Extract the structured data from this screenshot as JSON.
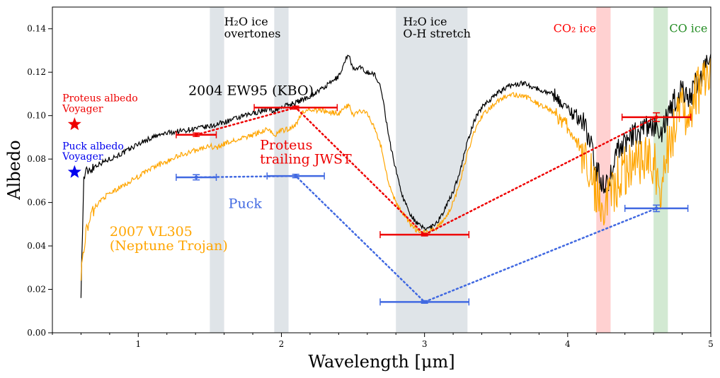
{
  "chart_data": {
    "type": "line",
    "title": "",
    "xlabel": "Wavelength [μm]",
    "ylabel": "Albedo",
    "xlim": [
      0.4,
      5.0
    ],
    "ylim": [
      0.0,
      0.15
    ],
    "x_ticks": [
      1,
      2,
      3,
      4,
      5
    ],
    "y_ticks": [
      0.0,
      0.02,
      0.04,
      0.06,
      0.08,
      0.1,
      0.12,
      0.14
    ],
    "x_tick_labels": [
      "1",
      "2",
      "3",
      "4",
      "5"
    ],
    "y_tick_labels": [
      "0.00",
      "0.02",
      "0.04",
      "0.06",
      "0.08",
      "0.10",
      "0.12",
      "0.14"
    ],
    "bands": [
      {
        "name": "h2o-overtone-band-1",
        "x0": 1.5,
        "x1": 1.6,
        "color": "#b9c3cb"
      },
      {
        "name": "h2o-overtone-band-2",
        "x0": 1.95,
        "x1": 2.05,
        "color": "#b9c3cb"
      },
      {
        "name": "h2o-stretch-band",
        "x0": 2.8,
        "x1": 3.3,
        "color": "#b9c3cb"
      },
      {
        "name": "co2-band",
        "x0": 4.2,
        "x1": 4.3,
        "color": "#ff9a9a"
      },
      {
        "name": "co-band",
        "x0": 4.6,
        "x1": 4.7,
        "color": "#9ccf9c"
      }
    ],
    "band_labels": [
      {
        "name": "h2o-overtones-label",
        "lines": [
          "H₂O ice",
          "overtones"
        ],
        "x": 1.6,
        "y": 0.1415,
        "color": "#000000"
      },
      {
        "name": "h2o-stretch-label",
        "lines": [
          "H₂O ice",
          "O-H stretch"
        ],
        "x": 2.85,
        "y": 0.1415,
        "color": "#000000"
      },
      {
        "name": "co2-ice-label",
        "lines": [
          "CO₂ ice"
        ],
        "x": 3.9,
        "y": 0.1385,
        "color": "#ff0000"
      },
      {
        "name": "co-ice-label",
        "lines": [
          "CO ice"
        ],
        "x": 4.71,
        "y": 0.1385,
        "color": "#228b22"
      }
    ],
    "series": [
      {
        "name": "2004 EW95 (KBO)",
        "color": "#000000",
        "label_lines": [
          "2004 EW95 (KBO)"
        ],
        "label_x": 1.35,
        "label_y": 0.1095,
        "points": [
          [
            0.6,
            0.019
          ],
          [
            0.62,
            0.072
          ],
          [
            0.65,
            0.075
          ],
          [
            0.7,
            0.077
          ],
          [
            0.8,
            0.08
          ],
          [
            0.9,
            0.083
          ],
          [
            1.0,
            0.087
          ],
          [
            1.1,
            0.09
          ],
          [
            1.2,
            0.092
          ],
          [
            1.3,
            0.093
          ],
          [
            1.4,
            0.094
          ],
          [
            1.5,
            0.095
          ],
          [
            1.55,
            0.096
          ],
          [
            1.6,
            0.097
          ],
          [
            1.7,
            0.099
          ],
          [
            1.8,
            0.101
          ],
          [
            1.9,
            0.103
          ],
          [
            1.95,
            0.102
          ],
          [
            2.0,
            0.104
          ],
          [
            2.05,
            0.105
          ],
          [
            2.1,
            0.106
          ],
          [
            2.2,
            0.109
          ],
          [
            2.3,
            0.113
          ],
          [
            2.4,
            0.118
          ],
          [
            2.47,
            0.129
          ],
          [
            2.5,
            0.121
          ],
          [
            2.55,
            0.122
          ],
          [
            2.6,
            0.12
          ],
          [
            2.65,
            0.119
          ],
          [
            2.7,
            0.112
          ],
          [
            2.75,
            0.09
          ],
          [
            2.8,
            0.075
          ],
          [
            2.85,
            0.062
          ],
          [
            2.9,
            0.055
          ],
          [
            2.95,
            0.05
          ],
          [
            3.0,
            0.048
          ],
          [
            3.05,
            0.049
          ],
          [
            3.1,
            0.052
          ],
          [
            3.15,
            0.058
          ],
          [
            3.2,
            0.065
          ],
          [
            3.25,
            0.075
          ],
          [
            3.3,
            0.088
          ],
          [
            3.35,
            0.098
          ],
          [
            3.4,
            0.104
          ],
          [
            3.5,
            0.11
          ],
          [
            3.6,
            0.114
          ],
          [
            3.7,
            0.115
          ],
          [
            3.8,
            0.112
          ],
          [
            3.9,
            0.11
          ],
          [
            4.0,
            0.103
          ],
          [
            4.1,
            0.098
          ],
          [
            4.15,
            0.09
          ],
          [
            4.2,
            0.075
          ],
          [
            4.25,
            0.067
          ],
          [
            4.3,
            0.072
          ],
          [
            4.35,
            0.085
          ],
          [
            4.4,
            0.088
          ],
          [
            4.5,
            0.092
          ],
          [
            4.6,
            0.096
          ],
          [
            4.65,
            0.09
          ],
          [
            4.7,
            0.1
          ],
          [
            4.75,
            0.107
          ],
          [
            4.8,
            0.112
          ],
          [
            4.85,
            0.108
          ],
          [
            4.9,
            0.115
          ],
          [
            4.95,
            0.12
          ],
          [
            5.0,
            0.125
          ]
        ]
      },
      {
        "name": "2007 VL305 (Neptune Trojan)",
        "color": "#ffa500",
        "label_lines": [
          "2007 VL305",
          "(Neptune Trojan)"
        ],
        "label_x": 0.8,
        "label_y": 0.0445,
        "points": [
          [
            0.6,
            0.027
          ],
          [
            0.63,
            0.045
          ],
          [
            0.66,
            0.052
          ],
          [
            0.7,
            0.058
          ],
          [
            0.75,
            0.062
          ],
          [
            0.8,
            0.064
          ],
          [
            0.9,
            0.068
          ],
          [
            1.0,
            0.072
          ],
          [
            1.1,
            0.076
          ],
          [
            1.2,
            0.079
          ],
          [
            1.3,
            0.082
          ],
          [
            1.4,
            0.084
          ],
          [
            1.5,
            0.086
          ],
          [
            1.55,
            0.085
          ],
          [
            1.6,
            0.087
          ],
          [
            1.7,
            0.089
          ],
          [
            1.8,
            0.091
          ],
          [
            1.9,
            0.094
          ],
          [
            1.95,
            0.091
          ],
          [
            2.0,
            0.093
          ],
          [
            2.05,
            0.094
          ],
          [
            2.1,
            0.096
          ],
          [
            2.15,
            0.102
          ],
          [
            2.2,
            0.103
          ],
          [
            2.3,
            0.102
          ],
          [
            2.4,
            0.101
          ],
          [
            2.47,
            0.105
          ],
          [
            2.5,
            0.1
          ],
          [
            2.55,
            0.102
          ],
          [
            2.6,
            0.101
          ],
          [
            2.65,
            0.095
          ],
          [
            2.7,
            0.085
          ],
          [
            2.75,
            0.068
          ],
          [
            2.8,
            0.06
          ],
          [
            2.85,
            0.055
          ],
          [
            2.9,
            0.05
          ],
          [
            2.95,
            0.047
          ],
          [
            3.0,
            0.046
          ],
          [
            3.05,
            0.047
          ],
          [
            3.1,
            0.049
          ],
          [
            3.15,
            0.053
          ],
          [
            3.2,
            0.06
          ],
          [
            3.25,
            0.07
          ],
          [
            3.3,
            0.083
          ],
          [
            3.35,
            0.093
          ],
          [
            3.4,
            0.1
          ],
          [
            3.5,
            0.106
          ],
          [
            3.6,
            0.11
          ],
          [
            3.7,
            0.109
          ],
          [
            3.8,
            0.105
          ],
          [
            3.9,
            0.102
          ],
          [
            4.0,
            0.095
          ],
          [
            4.1,
            0.085
          ],
          [
            4.15,
            0.075
          ],
          [
            4.2,
            0.065
          ],
          [
            4.25,
            0.058
          ],
          [
            4.3,
            0.062
          ],
          [
            4.35,
            0.07
          ],
          [
            4.4,
            0.075
          ],
          [
            4.5,
            0.08
          ],
          [
            4.6,
            0.08
          ],
          [
            4.65,
            0.068
          ],
          [
            4.7,
            0.085
          ],
          [
            4.75,
            0.095
          ],
          [
            4.8,
            0.102
          ],
          [
            4.85,
            0.1
          ],
          [
            4.9,
            0.11
          ],
          [
            4.95,
            0.115
          ],
          [
            5.0,
            0.118
          ]
        ]
      }
    ],
    "jwst_sets": [
      {
        "name": "Proteus trailing JWST",
        "color": "#ee0000",
        "label_lines": [
          "Proteus",
          "trailing JWST"
        ],
        "label_x": 1.85,
        "label_y": 0.0845,
        "points": [
          {
            "x": 1.405,
            "y": 0.0912,
            "xerr": 0.14,
            "yerr": 0.0008
          },
          {
            "x": 2.1,
            "y": 0.1037,
            "xerr": 0.29,
            "yerr": 0.0007
          },
          {
            "x": 3.0,
            "y": 0.0452,
            "xerr": 0.31,
            "yerr": 0.0006
          },
          {
            "x": 4.62,
            "y": 0.0993,
            "xerr": 0.24,
            "yerr": 0.002
          }
        ]
      },
      {
        "name": "Puck",
        "color": "#4169e1",
        "label_lines": [
          "Puck"
        ],
        "label_x": 1.63,
        "label_y": 0.0575,
        "points": [
          {
            "x": 1.405,
            "y": 0.0716,
            "xerr": 0.14,
            "yerr": 0.0012
          },
          {
            "x": 2.1,
            "y": 0.0722,
            "xerr": 0.2,
            "yerr": 0.0008
          },
          {
            "x": 3.0,
            "y": 0.0142,
            "xerr": 0.31,
            "yerr": 0.0006
          },
          {
            "x": 4.62,
            "y": 0.0573,
            "xerr": 0.22,
            "yerr": 0.0015
          }
        ]
      }
    ],
    "voyager_points": [
      {
        "name": "Proteus albedo Voyager",
        "label_lines": [
          "Proteus albedo",
          "Voyager"
        ],
        "x": 0.555,
        "y": 0.096,
        "color": "#ee0000",
        "label_x": 0.47,
        "label_y": 0.1065
      },
      {
        "name": "Puck albedo Voyager",
        "label_lines": [
          "Puck albedo",
          "Voyager"
        ],
        "x": 0.555,
        "y": 0.074,
        "color": "#0000ee",
        "label_x": 0.47,
        "label_y": 0.0845
      }
    ]
  }
}
